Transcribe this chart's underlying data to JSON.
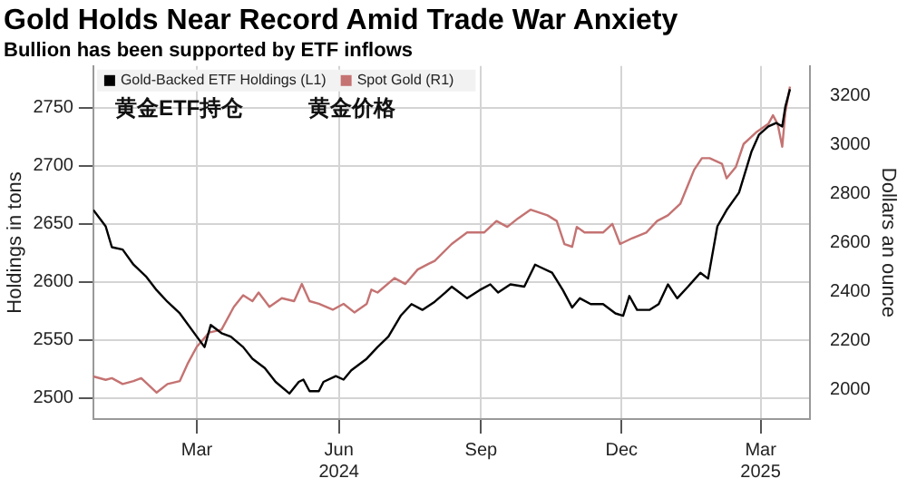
{
  "chart_data": {
    "type": "line",
    "title": "Gold Holds Near Record Amid Trade War Anxiety",
    "subtitle": "Bullion has been supported by ETF inflows",
    "ylabel": "Holdings in tons",
    "y2label": "Dollars an ounce",
    "annotations": [
      "黄金ETF持仓",
      "黄金价格"
    ],
    "xlim": [
      "2024-01-08",
      "2025-04-16"
    ],
    "xticks": [
      {
        "value": "2024-03-15",
        "label": "Mar"
      },
      {
        "value": "2024-06-15",
        "label": "Jun\n2024"
      },
      {
        "value": "2024-09-15",
        "label": "Sep"
      },
      {
        "value": "2024-12-15",
        "label": "Dec"
      },
      {
        "value": "2025-03-15",
        "label": "Mar\n2025"
      }
    ],
    "ylim": [
      2482,
      2786
    ],
    "yticks": [
      2500,
      2550,
      2600,
      2650,
      2700,
      2750
    ],
    "y2lim": [
      1880,
      3320
    ],
    "y2ticks": [
      2000,
      2200,
      2400,
      2600,
      2800,
      3000,
      3200
    ],
    "grid": true,
    "legend": "top left",
    "marker": "none",
    "line_style": "solid",
    "series": [
      {
        "name": "Gold-Backed ETF Holdings (L1)",
        "color": "#000000",
        "axis": "y",
        "x": [
          "2024-01-08",
          "2024-01-16",
          "2024-01-20",
          "2024-01-27",
          "2024-02-03",
          "2024-02-11",
          "2024-02-18",
          "2024-02-25",
          "2024-03-04",
          "2024-03-15",
          "2024-03-20",
          "2024-03-24",
          "2024-03-31",
          "2024-04-06",
          "2024-04-14",
          "2024-04-20",
          "2024-04-28",
          "2024-05-05",
          "2024-05-14",
          "2024-05-20",
          "2024-05-23",
          "2024-05-27",
          "2024-06-02",
          "2024-06-05",
          "2024-06-13",
          "2024-06-18",
          "2024-06-23",
          "2024-07-03",
          "2024-07-10",
          "2024-07-17",
          "2024-07-25",
          "2024-08-01",
          "2024-08-08",
          "2024-08-16",
          "2024-08-23",
          "2024-08-27",
          "2024-09-06",
          "2024-09-14",
          "2024-09-21",
          "2024-09-26",
          "2024-10-04",
          "2024-10-13",
          "2024-10-20",
          "2024-10-23",
          "2024-10-31",
          "2024-11-07",
          "2024-11-13",
          "2024-11-18",
          "2024-11-25",
          "2024-12-03",
          "2024-12-11",
          "2024-12-16",
          "2024-12-20",
          "2024-12-25",
          "2025-01-02",
          "2025-01-08",
          "2025-01-14",
          "2025-01-20",
          "2025-01-27",
          "2025-02-04",
          "2025-02-09",
          "2025-02-15",
          "2025-02-21",
          "2025-03-01",
          "2025-03-09",
          "2025-03-14",
          "2025-03-20",
          "2025-03-25",
          "2025-03-29",
          "2025-03-31",
          "2025-04-03"
        ],
        "values": [
          2662,
          2648,
          2630,
          2628,
          2615,
          2605,
          2593,
          2583,
          2573,
          2553,
          2544,
          2563,
          2556,
          2553,
          2544,
          2534,
          2526,
          2514,
          2504,
          2514,
          2516,
          2506,
          2506,
          2514,
          2519,
          2516,
          2524,
          2534,
          2544,
          2553,
          2571,
          2581,
          2576,
          2583,
          2591,
          2596,
          2586,
          2593,
          2598,
          2591,
          2598,
          2596,
          2615,
          2613,
          2608,
          2593,
          2578,
          2586,
          2581,
          2581,
          2573,
          2571,
          2588,
          2576,
          2576,
          2581,
          2598,
          2586,
          2596,
          2608,
          2603,
          2648,
          2662,
          2677,
          2712,
          2727,
          2734,
          2737,
          2734,
          2751,
          2766
        ]
      },
      {
        "name": "Spot Gold (R1)",
        "color": "#c47372",
        "axis": "y2",
        "x": [
          "2024-01-08",
          "2024-01-16",
          "2024-01-20",
          "2024-01-27",
          "2024-02-03",
          "2024-02-08",
          "2024-02-18",
          "2024-02-25",
          "2024-03-04",
          "2024-03-09",
          "2024-03-15",
          "2024-03-23",
          "2024-03-31",
          "2024-04-08",
          "2024-04-14",
          "2024-04-20",
          "2024-04-24",
          "2024-05-01",
          "2024-05-09",
          "2024-05-17",
          "2024-05-22",
          "2024-05-27",
          "2024-06-02",
          "2024-06-11",
          "2024-06-18",
          "2024-06-25",
          "2024-07-03",
          "2024-07-06",
          "2024-07-10",
          "2024-07-21",
          "2024-07-28",
          "2024-08-05",
          "2024-08-12",
          "2024-08-16",
          "2024-08-27",
          "2024-09-06",
          "2024-09-17",
          "2024-09-25",
          "2024-10-02",
          "2024-10-09",
          "2024-10-17",
          "2024-10-28",
          "2024-11-03",
          "2024-11-08",
          "2024-11-13",
          "2024-11-16",
          "2024-11-21",
          "2024-12-03",
          "2024-12-09",
          "2024-12-14",
          "2024-12-22",
          "2024-12-31",
          "2025-01-07",
          "2025-01-14",
          "2025-01-22",
          "2025-01-31",
          "2025-02-05",
          "2025-02-10",
          "2025-02-18",
          "2025-02-21",
          "2025-02-27",
          "2025-03-04",
          "2025-03-12",
          "2025-03-20",
          "2025-03-23",
          "2025-03-26",
          "2025-03-29",
          "2025-03-31",
          "2025-04-03"
        ],
        "values": [
          2054,
          2040,
          2047,
          2023,
          2035,
          2047,
          1988,
          2023,
          2035,
          2105,
          2175,
          2233,
          2245,
          2338,
          2385,
          2361,
          2396,
          2338,
          2373,
          2361,
          2431,
          2361,
          2350,
          2326,
          2350,
          2315,
          2350,
          2408,
          2396,
          2455,
          2431,
          2490,
          2513,
          2525,
          2594,
          2641,
          2641,
          2688,
          2664,
          2699,
          2734,
          2711,
          2688,
          2594,
          2583,
          2664,
          2641,
          2641,
          2676,
          2594,
          2618,
          2641,
          2688,
          2711,
          2758,
          2897,
          2944,
          2944,
          2921,
          2862,
          2909,
          3002,
          3049,
          3084,
          3119,
          3084,
          2991,
          3131,
          3236
        ]
      }
    ]
  }
}
